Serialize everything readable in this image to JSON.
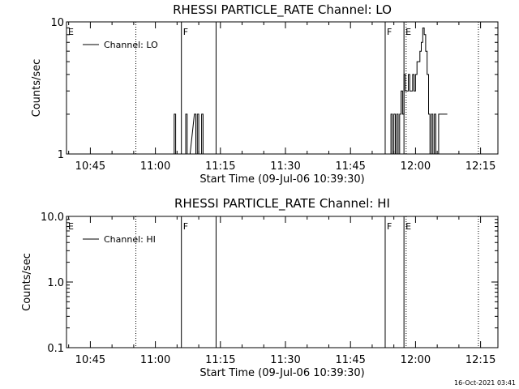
{
  "footer": {
    "timestamp": "16-Oct-2021 03:41"
  },
  "chart_data": [
    {
      "type": "line",
      "title": "RHESSI PARTICLE_RATE Channel: LO",
      "xlabel": "Start Time (09-Jul-06 10:39:30)",
      "ylabel": "Counts/sec",
      "yscale": "log",
      "xlim": [
        "10:39:30",
        "12:19:00"
      ],
      "ylim": [
        1,
        10
      ],
      "xticks": [
        "10:45",
        "11:00",
        "11:15",
        "11:30",
        "11:45",
        "12:00",
        "12:15"
      ],
      "yticks": [
        "1",
        "10"
      ],
      "legend": {
        "position": "top-left",
        "label": "Channel: LO"
      },
      "series": [
        {
          "name": "Channel: LO",
          "color": "#000000",
          "x": [
            "11:04:00",
            "11:04:20",
            "11:04:40",
            "11:05:00",
            "11:06:40",
            "11:07:00",
            "11:07:20",
            "11:07:40",
            "11:09:00",
            "11:09:20",
            "11:09:40",
            "11:10:00",
            "11:10:20",
            "11:10:40",
            "11:11:00",
            "11:54:00",
            "11:54:20",
            "11:54:40",
            "11:55:00",
            "11:55:20",
            "11:55:40",
            "11:56:00",
            "11:56:20",
            "11:56:40",
            "11:57:00",
            "11:57:20",
            "11:57:40",
            "11:58:00",
            "11:58:20",
            "11:58:40",
            "11:59:00",
            "11:59:20",
            "11:59:40",
            "12:00:00",
            "12:00:20",
            "12:00:40",
            "12:01:00",
            "12:01:20",
            "12:01:40",
            "12:02:00",
            "12:02:20",
            "12:02:40",
            "12:03:00",
            "12:03:20",
            "12:03:40",
            "12:04:00",
            "12:04:20",
            "12:04:40",
            "12:05:00",
            "12:05:20",
            "12:05:40",
            "12:06:00",
            "12:07:00"
          ],
          "y": [
            1,
            2,
            1,
            1,
            1,
            2,
            1,
            1,
            2,
            1,
            2,
            1,
            1,
            2,
            1,
            1,
            2,
            1,
            2,
            1,
            2,
            1,
            2,
            3,
            2,
            4,
            3,
            3,
            4,
            3,
            3,
            4,
            3,
            4,
            5,
            5,
            6,
            7,
            9,
            8,
            6,
            4,
            2,
            1,
            2,
            1,
            2,
            1,
            1,
            2,
            2,
            2,
            2
          ]
        }
      ],
      "annotations": [
        {
          "type": "flag",
          "label": "E",
          "x": "10:39:30",
          "style": "dotted"
        },
        {
          "type": "flag",
          "label": "",
          "x": "10:55:30",
          "style": "dotted"
        },
        {
          "type": "flag",
          "label": "F",
          "x": "11:06:00",
          "style": "solid"
        },
        {
          "type": "flag",
          "label": "",
          "x": "11:14:00",
          "style": "solid"
        },
        {
          "type": "flag",
          "label": "F",
          "x": "11:53:00",
          "style": "solid"
        },
        {
          "type": "flag",
          "label": "E",
          "x": "11:57:20",
          "style": "solid"
        },
        {
          "type": "flag",
          "label": "",
          "x": "11:57:50",
          "style": "dotted"
        },
        {
          "type": "flag",
          "label": "",
          "x": "12:14:30",
          "style": "dotted"
        }
      ]
    },
    {
      "type": "line",
      "title": "RHESSI PARTICLE_RATE Channel: HI",
      "xlabel": "Start Time (09-Jul-06 10:39:30)",
      "ylabel": "Counts/sec",
      "yscale": "log",
      "xlim": [
        "10:39:30",
        "12:19:00"
      ],
      "ylim": [
        0.1,
        10
      ],
      "xticks": [
        "10:45",
        "11:00",
        "11:15",
        "11:30",
        "11:45",
        "12:00",
        "12:15"
      ],
      "yticks": [
        "0.1",
        "1.0",
        "10.0"
      ],
      "legend": {
        "position": "top-left",
        "label": "Channel: HI"
      },
      "series": [
        {
          "name": "Channel: HI",
          "color": "#000000",
          "x": [],
          "y": []
        }
      ],
      "annotations": [
        {
          "type": "flag",
          "label": "E",
          "x": "10:39:30",
          "style": "dotted"
        },
        {
          "type": "flag",
          "label": "",
          "x": "10:55:30",
          "style": "dotted"
        },
        {
          "type": "flag",
          "label": "F",
          "x": "11:06:00",
          "style": "solid"
        },
        {
          "type": "flag",
          "label": "",
          "x": "11:14:00",
          "style": "solid"
        },
        {
          "type": "flag",
          "label": "F",
          "x": "11:53:00",
          "style": "solid"
        },
        {
          "type": "flag",
          "label": "E",
          "x": "11:57:20",
          "style": "solid"
        },
        {
          "type": "flag",
          "label": "",
          "x": "11:57:50",
          "style": "dotted"
        },
        {
          "type": "flag",
          "label": "",
          "x": "12:14:30",
          "style": "dotted"
        }
      ]
    }
  ]
}
